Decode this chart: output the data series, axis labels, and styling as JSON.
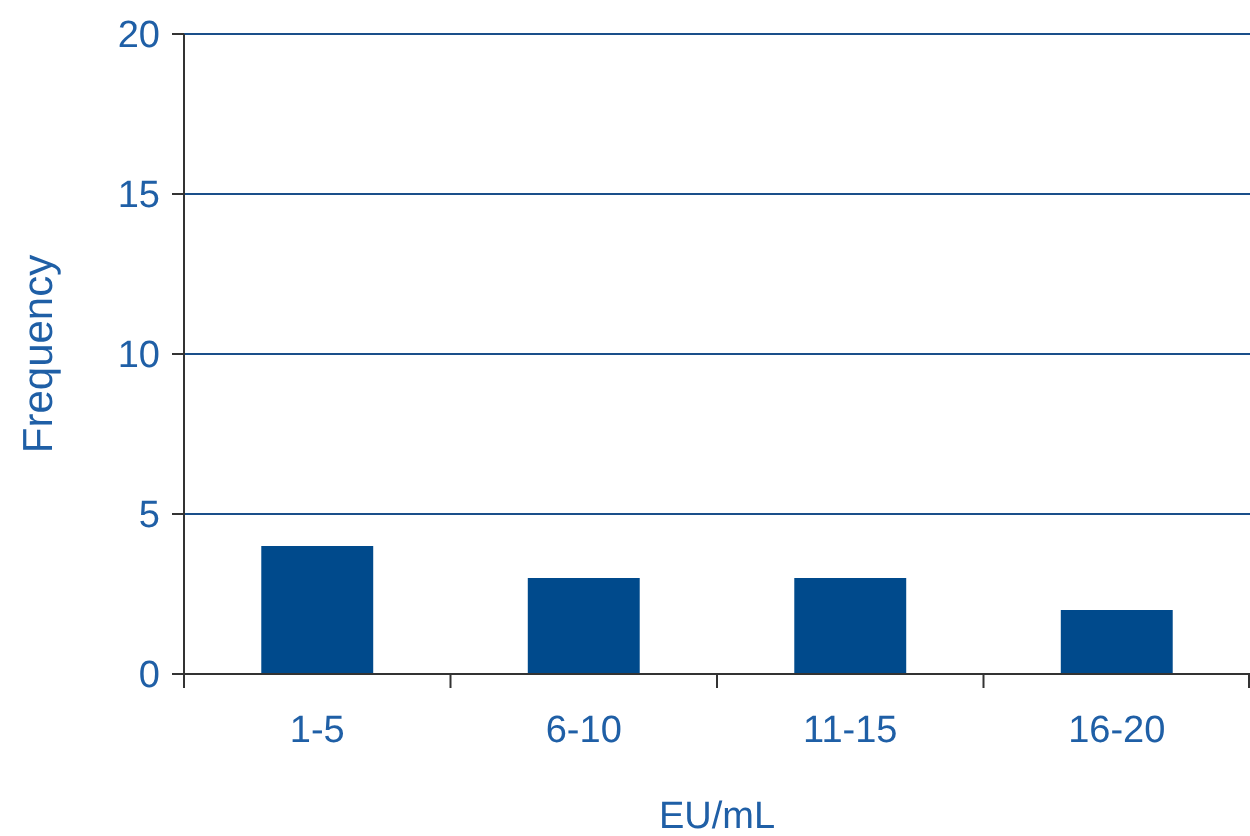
{
  "chart_data": {
    "type": "bar",
    "xlabel": "EU/mL",
    "ylabel": "Frequency",
    "categories": [
      "1-5",
      "6-10",
      "11-15",
      "16-20"
    ],
    "values": [
      4,
      3,
      3,
      2
    ],
    "color": "#004a8c",
    "ylim": [
      0,
      20
    ],
    "yticks": [
      0,
      5,
      10,
      15,
      20
    ],
    "grid": "y"
  }
}
